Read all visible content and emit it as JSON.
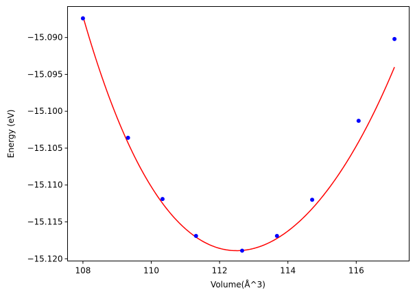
{
  "chart_data": {
    "type": "scatter",
    "title": "",
    "xlabel": "Volume(Å^3)",
    "ylabel": "Energy (eV)",
    "xlim": [
      107.55,
      117.55
    ],
    "ylim": [
      -15.1203,
      -15.0858
    ],
    "xticks": [
      108,
      110,
      112,
      114,
      116
    ],
    "xtick_labels": [
      "108",
      "110",
      "112",
      "114",
      "116"
    ],
    "yticks": [
      -15.09,
      -15.095,
      -15.1,
      -15.105,
      -15.11,
      -15.115,
      -15.12
    ],
    "ytick_labels": [
      "−15.090",
      "−15.095",
      "−15.100",
      "−15.105",
      "−15.110",
      "−15.115",
      "−15.120"
    ],
    "grid": false,
    "series": [
      {
        "kind": "points",
        "color": "#0000ff",
        "x": [
          108.0,
          109.32,
          110.33,
          111.31,
          112.66,
          113.68,
          114.71,
          116.07,
          117.12
        ],
        "y": [
          -15.0874,
          -15.1036,
          -15.1119,
          -15.1169,
          -15.1189,
          -15.1169,
          -15.112,
          -15.1013,
          -15.0902
        ]
      },
      {
        "kind": "fit-curve",
        "color": "#ff0000",
        "x_range": [
          108.0,
          117.12
        ],
        "poly_coeffs_in_x_minus_112_5": [
          -15.1189,
          0.0,
          0.001235,
          -4.5e-05,
          6.5e-06
        ]
      }
    ]
  }
}
